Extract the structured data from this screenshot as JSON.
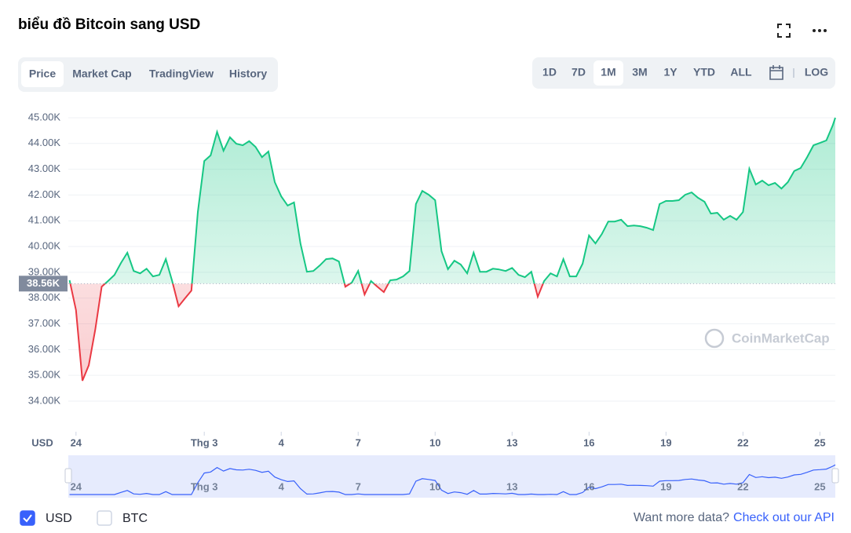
{
  "chart_data": {
    "type": "line",
    "title": "biểu đồ Bitcoin sang USD",
    "y_label": "USD",
    "x": [
      -0.25,
      0,
      0.25,
      0.5,
      0.75,
      1,
      1.25,
      1.5,
      1.75,
      2,
      2.25,
      2.5,
      2.75,
      3,
      3.25,
      3.5,
      3.75,
      4,
      4.25,
      4.5,
      4.75,
      5,
      5.25,
      5.5,
      5.75,
      6,
      6.25,
      6.5,
      6.75,
      7,
      7.25,
      7.5,
      7.75,
      8,
      8.25,
      8.5,
      8.75,
      9,
      9.25,
      9.5,
      9.75,
      10,
      10.25,
      10.5,
      10.75,
      11,
      11.25,
      11.5,
      11.75,
      12,
      12.25,
      12.5,
      12.75,
      13,
      13.25,
      13.5,
      13.75,
      14,
      14.25,
      14.5,
      14.75,
      15,
      15.25,
      15.5,
      15.75,
      16,
      16.25,
      16.5,
      16.75,
      17,
      17.25,
      17.5,
      17.75,
      18,
      18.25,
      18.5,
      18.75,
      19,
      19.25,
      19.5,
      19.75,
      20,
      20.25,
      20.5,
      20.75,
      21,
      21.25,
      21.5,
      21.75,
      22,
      22.25,
      22.5,
      22.75,
      23,
      23.25,
      23.5,
      23.75,
      24,
      24.25,
      24.5,
      24.75,
      25,
      25.25,
      25.5,
      25.75,
      26,
      26.25,
      26.5,
      26.75,
      27,
      27.25,
      27.5,
      27.75,
      28,
      28.25,
      28.5,
      28.75,
      29,
      29.25,
      29.5,
      29.6
    ],
    "values": [
      38690,
      37530,
      34790,
      35390,
      36770,
      38440,
      38660,
      38900,
      39360,
      39760,
      39050,
      38960,
      39140,
      38840,
      38900,
      39510,
      38660,
      37680,
      37990,
      38290,
      41340,
      43320,
      43540,
      44450,
      43720,
      44240,
      43990,
      43930,
      44090,
      43870,
      43470,
      43690,
      42500,
      41950,
      41590,
      41710,
      40120,
      39020,
      39050,
      39260,
      39510,
      39540,
      39420,
      38440,
      38600,
      39050,
      38140,
      38660,
      38440,
      38230,
      38690,
      38720,
      38840,
      39050,
      41650,
      42160,
      42010,
      41800,
      39820,
      39120,
      39450,
      39300,
      38960,
      39760,
      39020,
      39020,
      39140,
      39110,
      39050,
      39170,
      38900,
      38810,
      39020,
      38050,
      38660,
      38960,
      38840,
      39510,
      38840,
      38840,
      39330,
      40430,
      40120,
      40490,
      40970,
      40970,
      41040,
      40790,
      40820,
      40790,
      40730,
      40640,
      41650,
      41770,
      41770,
      41800,
      42010,
      42100,
      41890,
      41740,
      41280,
      41310,
      41040,
      41190,
      41040,
      41340,
      43020,
      42410,
      42560,
      42380,
      42470,
      42250,
      42500,
      42930,
      43050,
      43470,
      43930,
      44020,
      44120,
      44700,
      45000
    ],
    "color_up": "#16c784",
    "color_down": "#ea3943",
    "navigator_color": "#3861fb",
    "baseline": {
      "value": 38560,
      "label": "38.56K"
    },
    "xlim": [
      -0.3,
      29.6
    ],
    "xticks": [
      {
        "value": 0,
        "label": "24"
      },
      {
        "value": 5,
        "label": "Thg 3"
      },
      {
        "value": 8,
        "label": "4"
      },
      {
        "value": 11,
        "label": "7"
      },
      {
        "value": 14,
        "label": "10"
      },
      {
        "value": 17,
        "label": "13"
      },
      {
        "value": 20,
        "label": "16"
      },
      {
        "value": 23,
        "label": "19"
      },
      {
        "value": 26,
        "label": "22"
      },
      {
        "value": 29,
        "label": "25"
      }
    ],
    "ylim": [
      32810,
      45670
    ],
    "yticks": [
      {
        "value": 34000,
        "label": "34.00K"
      },
      {
        "value": 35000,
        "label": "35.00K"
      },
      {
        "value": 36000,
        "label": "36.00K"
      },
      {
        "value": 37000,
        "label": "37.00K"
      },
      {
        "value": 38000,
        "label": "38.00K"
      },
      {
        "value": 39000,
        "label": "39.00K"
      },
      {
        "value": 40000,
        "label": "40.00K"
      },
      {
        "value": 41000,
        "label": "41.00K"
      },
      {
        "value": 42000,
        "label": "42.00K"
      },
      {
        "value": 43000,
        "label": "43.00K"
      },
      {
        "value": 44000,
        "label": "44.00K"
      },
      {
        "value": 45000,
        "label": "45.00K"
      }
    ],
    "grid": true,
    "watermark": "CoinMarketCap"
  },
  "ui": {
    "tabs": [
      "Price",
      "Market Cap",
      "TradingView",
      "History"
    ],
    "active_tab": "Price",
    "ranges": [
      "1D",
      "7D",
      "1M",
      "3M",
      "1Y",
      "YTD",
      "ALL"
    ],
    "active_range": "1M",
    "log": "LOG",
    "currencies": [
      {
        "label": "USD",
        "checked": true
      },
      {
        "label": "BTC",
        "checked": false
      }
    ],
    "footer_text": "Want more data?",
    "footer_link": "Check out our API"
  }
}
